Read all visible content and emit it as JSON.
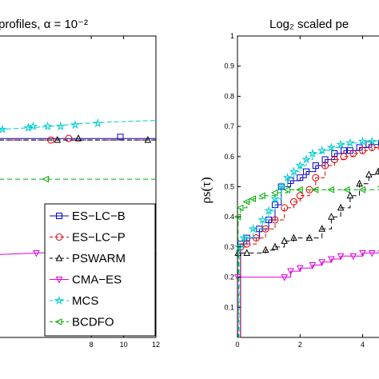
{
  "chart_data": [
    {
      "type": "line",
      "title": "profiles, α = 10⁻²",
      "xlabel": "",
      "ylabel": "",
      "xlim": [
        2.3,
        12
      ],
      "ylim": [
        0,
        1
      ],
      "xticks": [
        8,
        10,
        12
      ],
      "xtick_labels": [
        "8",
        "10",
        "12"
      ],
      "grid": false,
      "legend_position": "bottom-right",
      "series": [
        {
          "name": "ES−LC−B",
          "color": "#0000cc",
          "dash": "",
          "marker": "square",
          "x": [
            2.3,
            12
          ],
          "y": [
            0.66,
            0.66
          ],
          "marker_x": [
            9.8
          ],
          "marker_y": [
            0.665
          ]
        },
        {
          "name": "ES−LC−P",
          "color": "#dd0000",
          "dash": "5,3",
          "marker": "circle",
          "x": [
            2.3,
            12
          ],
          "y": [
            0.655,
            0.655
          ],
          "marker_x": [
            5.5,
            6.6
          ],
          "marker_y": [
            0.655,
            0.66
          ]
        },
        {
          "name": "PSWARM",
          "color": "#000000",
          "dash": "6,4",
          "marker": "triangle-up",
          "x": [
            2.3,
            12
          ],
          "y": [
            0.655,
            0.655
          ],
          "marker_x": [
            5.9,
            7.2,
            11.5
          ],
          "marker_y": [
            0.655,
            0.66,
            0.655
          ]
        },
        {
          "name": "CMA−ES",
          "color": "#dd00dd",
          "dash": "",
          "marker": "triangle-down",
          "x": [
            2.3,
            7.0,
            12
          ],
          "y": [
            0.275,
            0.285,
            0.29
          ],
          "marker_x": [
            4.6,
            5.6,
            6.6
          ],
          "marker_y": [
            0.28,
            0.27,
            0.285
          ]
        },
        {
          "name": "MCS",
          "color": "#00cccc",
          "dash": "6,3",
          "marker": "star",
          "x": [
            2.3,
            5.5,
            7.5,
            9.5,
            12
          ],
          "y": [
            0.69,
            0.7,
            0.71,
            0.715,
            0.72
          ],
          "marker_x": [
            2.5,
            4.1,
            4.4,
            5.3,
            6.1,
            7.0,
            8.4
          ],
          "marker_y": [
            0.69,
            0.695,
            0.7,
            0.7,
            0.7,
            0.705,
            0.71
          ]
        },
        {
          "name": "BCDFO",
          "color": "#00aa00",
          "dash": "6,4",
          "marker": "triangle-left",
          "x": [
            2.3,
            12
          ],
          "y": [
            0.525,
            0.525
          ],
          "marker_x": [
            5.2
          ],
          "marker_y": [
            0.525
          ]
        }
      ]
    },
    {
      "type": "line",
      "title": "Log₂ scaled pe",
      "xlabel": "",
      "ylabel": "ρs(τ)",
      "xlim": [
        0,
        4.6
      ],
      "ylim": [
        0,
        1
      ],
      "xticks": [
        0,
        2,
        4
      ],
      "xtick_labels": [
        "0",
        "2",
        "4"
      ],
      "yticks": [
        0.1,
        0.2,
        0.3,
        0.4,
        0.5,
        0.6,
        0.7,
        0.8,
        0.9,
        1
      ],
      "ytick_labels": [
        "0.1",
        "0.2",
        "0.3",
        "0.4",
        "0.5",
        "0.6",
        "0.7",
        "0.8",
        "0.9",
        "1"
      ],
      "grid": false,
      "series": [
        {
          "name": "ES−LC−B",
          "color": "#0000cc",
          "dash": "",
          "marker": "square",
          "x": [
            0.0,
            0.1,
            0.3,
            0.7,
            1.0,
            1.2,
            1.4,
            1.7,
            2.0,
            2.2,
            2.5,
            2.8,
            3.1,
            3.4,
            3.6,
            3.9,
            4.2,
            4.6
          ],
          "y": [
            0.0,
            0.31,
            0.33,
            0.36,
            0.39,
            0.44,
            0.5,
            0.52,
            0.53,
            0.55,
            0.57,
            0.59,
            0.61,
            0.62,
            0.62,
            0.63,
            0.64,
            0.645
          ]
        },
        {
          "name": "ES−LC−P",
          "color": "#dd0000",
          "dash": "5,3",
          "marker": "circle",
          "x": [
            0.0,
            0.1,
            0.3,
            0.6,
            0.9,
            1.2,
            1.5,
            1.8,
            2.0,
            2.3,
            2.5,
            2.8,
            3.1,
            3.4,
            3.7,
            4.0,
            4.3,
            4.6
          ],
          "y": [
            0.0,
            0.3,
            0.31,
            0.33,
            0.36,
            0.39,
            0.43,
            0.45,
            0.47,
            0.49,
            0.53,
            0.57,
            0.59,
            0.6,
            0.61,
            0.62,
            0.63,
            0.63
          ]
        },
        {
          "name": "PSWARM",
          "color": "#000000",
          "dash": "6,4",
          "marker": "triangle-up",
          "x": [
            0.0,
            0.02,
            0.3,
            0.9,
            1.2,
            1.5,
            1.8,
            2.3,
            2.7,
            3.0,
            3.3,
            3.6,
            3.9,
            4.2,
            4.5,
            4.6
          ],
          "y": [
            0.0,
            0.28,
            0.28,
            0.29,
            0.3,
            0.32,
            0.33,
            0.33,
            0.36,
            0.4,
            0.43,
            0.47,
            0.51,
            0.54,
            0.55,
            0.56
          ]
        },
        {
          "name": "CMA−ES",
          "color": "#dd00dd",
          "dash": "",
          "marker": "triangle-down",
          "x": [
            0.0,
            0.01,
            1.5,
            1.7,
            2.0,
            2.4,
            2.7,
            3.0,
            3.3,
            3.7,
            4.0,
            4.3,
            4.6
          ],
          "y": [
            0.0,
            0.2,
            0.2,
            0.22,
            0.23,
            0.24,
            0.25,
            0.26,
            0.27,
            0.27,
            0.28,
            0.28,
            0.28
          ]
        },
        {
          "name": "MCS",
          "color": "#00cccc",
          "dash": "6,3",
          "marker": "star",
          "x": [
            0.0,
            0.05,
            0.2,
            0.5,
            0.8,
            1.0,
            1.2,
            1.4,
            1.6,
            1.8,
            2.0,
            2.2,
            2.4,
            2.7,
            3.0,
            3.3,
            3.6,
            4.0,
            4.3,
            4.6
          ],
          "y": [
            0.0,
            0.3,
            0.33,
            0.36,
            0.39,
            0.42,
            0.46,
            0.5,
            0.53,
            0.55,
            0.57,
            0.59,
            0.61,
            0.62,
            0.63,
            0.64,
            0.645,
            0.65,
            0.65,
            0.65
          ]
        },
        {
          "name": "BCDFO",
          "color": "#00aa00",
          "dash": "6,4",
          "marker": "triangle-left",
          "x": [
            0.0,
            0.02,
            0.1,
            0.3,
            0.5,
            0.8,
            1.2,
            1.6,
            2.0,
            2.5,
            3.0,
            3.5,
            4.0,
            4.6
          ],
          "y": [
            0.0,
            0.4,
            0.43,
            0.45,
            0.46,
            0.47,
            0.48,
            0.49,
            0.49,
            0.49,
            0.49,
            0.49,
            0.49,
            0.5
          ]
        }
      ]
    }
  ]
}
